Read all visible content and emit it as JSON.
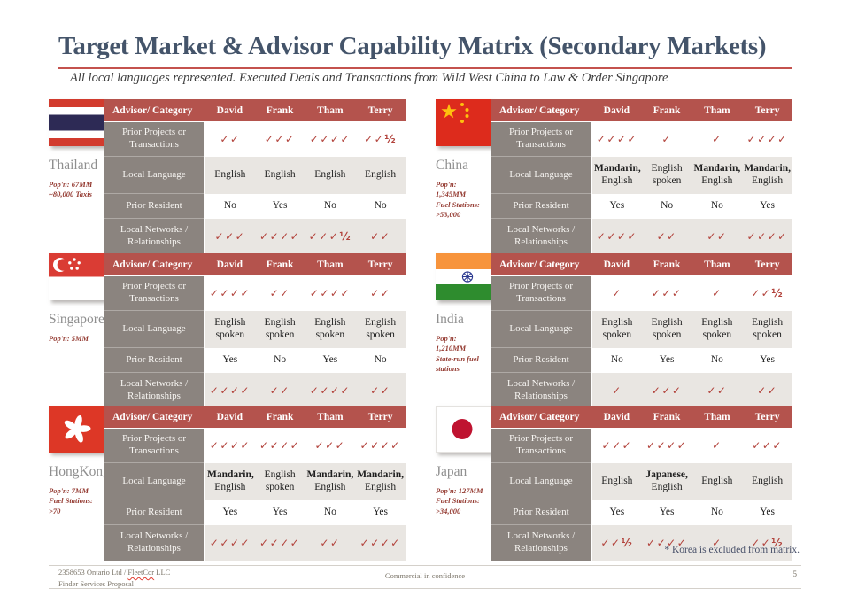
{
  "slide": {
    "title": "Target Market & Advisor Capability Matrix (Secondary Markets)",
    "subtitle": "All local languages represented. Executed Deals and Transactions from Wild West China to Law & Order Singapore",
    "footnote": "* Korea is excluded from matrix."
  },
  "table_template": {
    "header": [
      "Advisor/ Category",
      "David",
      "Frank",
      "Tham",
      "Terry"
    ],
    "row_labels": [
      "Prior Projects or Transactions",
      "Local Language",
      "Prior Resident",
      "Local Networks / Relationships"
    ]
  },
  "countries": [
    {
      "name": "Thailand",
      "flag": "thailand",
      "stats": [
        "Pop'n: 67MM",
        "~80,000 Taxis"
      ],
      "projects": [
        "✓✓",
        "✓✓✓",
        "✓✓✓✓",
        "✓✓½"
      ],
      "language": [
        {
          "bold": "",
          "rest": "English"
        },
        {
          "bold": "",
          "rest": "English"
        },
        {
          "bold": "",
          "rest": "English"
        },
        {
          "bold": "",
          "rest": "English"
        }
      ],
      "resident": [
        "No",
        "Yes",
        "No",
        "No"
      ],
      "networks": [
        "✓✓✓",
        "✓✓✓✓",
        "✓✓✓½",
        "✓✓"
      ]
    },
    {
      "name": "China",
      "flag": "china",
      "stats": [
        "Pop'n:",
        "1,345MM",
        "Fuel Stations:",
        ">53,000"
      ],
      "projects": [
        "✓✓✓✓",
        "✓",
        "✓",
        "✓✓✓✓"
      ],
      "language": [
        {
          "bold": "Mandarin,",
          "rest": "English"
        },
        {
          "bold": "",
          "rest": "English spoken"
        },
        {
          "bold": "Mandarin,",
          "rest": "English"
        },
        {
          "bold": "Mandarin,",
          "rest": "English"
        }
      ],
      "resident": [
        "Yes",
        "No",
        "No",
        "Yes"
      ],
      "networks": [
        "✓✓✓✓",
        "✓✓",
        "✓✓",
        "✓✓✓✓"
      ]
    },
    {
      "name": "Singapore",
      "flag": "singapore",
      "stats": [
        "Pop'n: 5MM"
      ],
      "projects": [
        "✓✓✓✓",
        "✓✓",
        "✓✓✓✓",
        "✓✓"
      ],
      "language": [
        {
          "bold": "",
          "rest": "English spoken"
        },
        {
          "bold": "",
          "rest": "English spoken"
        },
        {
          "bold": "",
          "rest": "English spoken"
        },
        {
          "bold": "",
          "rest": "English spoken"
        }
      ],
      "resident": [
        "Yes",
        "No",
        "Yes",
        "No"
      ],
      "networks": [
        "✓✓✓✓",
        "✓✓",
        "✓✓✓✓",
        "✓✓"
      ]
    },
    {
      "name": "India",
      "flag": "india",
      "stats": [
        "Pop'n:",
        "1,210MM",
        "State-run fuel",
        "stations"
      ],
      "projects": [
        "✓",
        "✓✓✓",
        "✓",
        "✓✓½"
      ],
      "language": [
        {
          "bold": "",
          "rest": "English spoken"
        },
        {
          "bold": "",
          "rest": "English spoken"
        },
        {
          "bold": "",
          "rest": "English spoken"
        },
        {
          "bold": "",
          "rest": "English spoken"
        }
      ],
      "resident": [
        "No",
        "Yes",
        "No",
        "Yes"
      ],
      "networks": [
        "✓",
        "✓✓✓",
        "✓✓",
        "✓✓"
      ]
    },
    {
      "name": "HongKong",
      "flag": "hongkong",
      "stats": [
        "Pop'n: 7MM",
        "Fuel Stations:",
        ">70"
      ],
      "projects": [
        "✓✓✓✓",
        "✓✓✓✓",
        "✓✓✓",
        "✓✓✓✓"
      ],
      "language": [
        {
          "bold": "Mandarin,",
          "rest": "English"
        },
        {
          "bold": "",
          "rest": "English spoken"
        },
        {
          "bold": "Mandarin,",
          "rest": "English"
        },
        {
          "bold": "Mandarin,",
          "rest": "English"
        }
      ],
      "resident": [
        "Yes",
        "Yes",
        "No",
        "Yes"
      ],
      "networks": [
        "✓✓✓✓",
        "✓✓✓✓",
        "✓✓",
        "✓✓✓✓"
      ]
    },
    {
      "name": "Japan",
      "flag": "japan",
      "stats": [
        "Pop'n: 127MM",
        "Fuel Stations:",
        ">34,000"
      ],
      "projects": [
        "✓✓✓",
        "✓✓✓✓",
        "✓",
        "✓✓✓"
      ],
      "language": [
        {
          "bold": "",
          "rest": "English"
        },
        {
          "bold": "Japanese,",
          "rest": "English"
        },
        {
          "bold": "",
          "rest": "English"
        },
        {
          "bold": "",
          "rest": "English"
        }
      ],
      "resident": [
        "Yes",
        "Yes",
        "No",
        "Yes"
      ],
      "networks": [
        "✓✓½",
        "✓✓✓✓",
        "✓",
        "✓✓½"
      ]
    }
  ],
  "footer": {
    "left_line1_prefix": "2358653 Ontario Ltd / ",
    "left_line1_word": "FleetCor",
    "left_line1_suffix": " LLC",
    "left_line2": "Finder Services Proposal",
    "center": "Commercial in confidence",
    "page_number": "5"
  },
  "colors": {
    "title_blue": "#44546a",
    "rule_red": "#c4524e",
    "header_red": "#b4534d",
    "label_gray": "#8b847f",
    "band_gray": "#e9e6e2",
    "check_red": "#b2423b",
    "stats_red": "#943a31"
  }
}
